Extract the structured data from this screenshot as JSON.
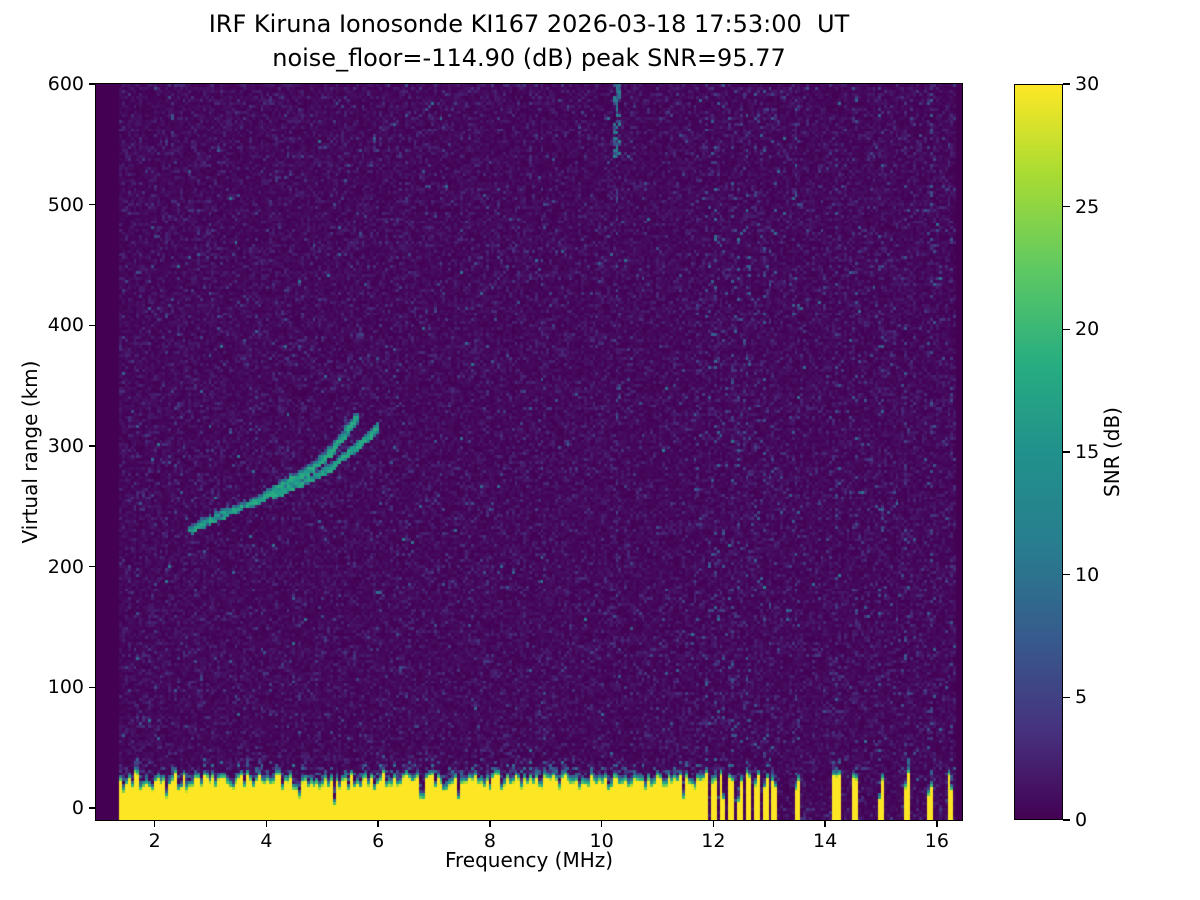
{
  "chart_data": {
    "type": "heatmap",
    "title": "IRF Kiruna Ionosonde KI167 2026-03-18 17:53:00  UT",
    "subtitle": "noise_floor=-114.90 (dB) peak SNR=95.77",
    "station": "KI167",
    "timestamp_ut": "2026-03-18 17:53:00",
    "noise_floor_db": -114.9,
    "peak_snr_db": 95.77,
    "xlabel": "Frequency (MHz)",
    "ylabel": "Virtual range (km)",
    "colorbar_label": "SNR (dB)",
    "colormap": "viridis",
    "xlim": [
      0.95,
      16.45
    ],
    "ylim": [
      -10,
      600
    ],
    "clim": [
      0,
      30
    ],
    "x_ticks": [
      2,
      4,
      6,
      8,
      10,
      12,
      14,
      16
    ],
    "y_ticks": [
      0,
      100,
      200,
      300,
      400,
      500,
      600
    ],
    "colorbar_ticks": [
      0,
      5,
      10,
      15,
      20,
      25,
      30
    ],
    "features": {
      "background_snr_db": 0,
      "data_freq_range_mhz": [
        1.38,
        16.35
      ],
      "ground_clutter": {
        "base_top_km": 24,
        "jitter_km": 12,
        "max_freq_mhz": 11.62,
        "snr_db": 30
      },
      "clutter_comb_freqs_mhz": [
        11.72,
        11.87,
        12.02,
        12.17,
        12.32,
        12.47,
        12.62,
        12.77,
        12.92,
        13.07,
        13.5,
        14.2,
        14.55,
        15.0,
        15.45,
        15.9,
        16.25
      ],
      "echo_traces": [
        {
          "name": "ionospheric-echo-lower",
          "points_mhz_km": [
            [
              2.65,
              230
            ],
            [
              3.0,
              238
            ],
            [
              3.4,
              246
            ],
            [
              3.8,
              253
            ],
            [
              4.2,
              260
            ],
            [
              4.6,
              268
            ],
            [
              5.0,
              277
            ],
            [
              5.3,
              287
            ],
            [
              5.6,
              298
            ],
            [
              5.85,
              308
            ],
            [
              6.0,
              315
            ]
          ]
        },
        {
          "name": "ionospheric-echo-upper",
          "points_mhz_km": [
            [
              3.95,
              258
            ],
            [
              4.3,
              267
            ],
            [
              4.6,
              275
            ],
            [
              4.9,
              284
            ],
            [
              5.15,
              294
            ],
            [
              5.35,
              305
            ],
            [
              5.5,
              315
            ],
            [
              5.62,
              323
            ]
          ]
        }
      ],
      "top_streak": {
        "freq_mhz": 10.3,
        "from_km": 600,
        "to_km": 535,
        "snr_db": 14
      },
      "interference_stripes": [
        {
          "freq_mhz": 11.72,
          "density": 0.1,
          "snr_db": 8
        },
        {
          "freq_mhz": 11.87,
          "density": 0.08,
          "snr_db": 8
        },
        {
          "freq_mhz": 12.02,
          "density": 0.14,
          "snr_db": 9
        },
        {
          "freq_mhz": 12.17,
          "density": 0.08,
          "snr_db": 8
        },
        {
          "freq_mhz": 12.32,
          "density": 0.12,
          "snr_db": 8
        },
        {
          "freq_mhz": 12.47,
          "density": 0.08,
          "snr_db": 8
        },
        {
          "freq_mhz": 12.62,
          "density": 0.13,
          "snr_db": 9
        },
        {
          "freq_mhz": 12.77,
          "density": 0.09,
          "snr_db": 8
        },
        {
          "freq_mhz": 12.92,
          "density": 0.12,
          "snr_db": 8
        },
        {
          "freq_mhz": 13.07,
          "density": 0.09,
          "snr_db": 8
        },
        {
          "freq_mhz": 13.5,
          "density": 0.15,
          "snr_db": 9
        },
        {
          "freq_mhz": 14.2,
          "density": 0.13,
          "snr_db": 8
        },
        {
          "freq_mhz": 14.55,
          "density": 0.07,
          "snr_db": 7
        },
        {
          "freq_mhz": 15.0,
          "density": 0.14,
          "snr_db": 8
        },
        {
          "freq_mhz": 15.45,
          "density": 0.12,
          "snr_db": 8
        },
        {
          "freq_mhz": 15.9,
          "density": 0.13,
          "snr_db": 8
        },
        {
          "freq_mhz": 16.25,
          "density": 0.08,
          "snr_db": 7
        },
        {
          "freq_mhz": 10.3,
          "density": 0.07,
          "snr_db": 7
        },
        {
          "freq_mhz": 8.95,
          "density": 0.05,
          "snr_db": 6
        },
        {
          "freq_mhz": 6.35,
          "density": 0.04,
          "snr_db": 6
        }
      ]
    }
  }
}
